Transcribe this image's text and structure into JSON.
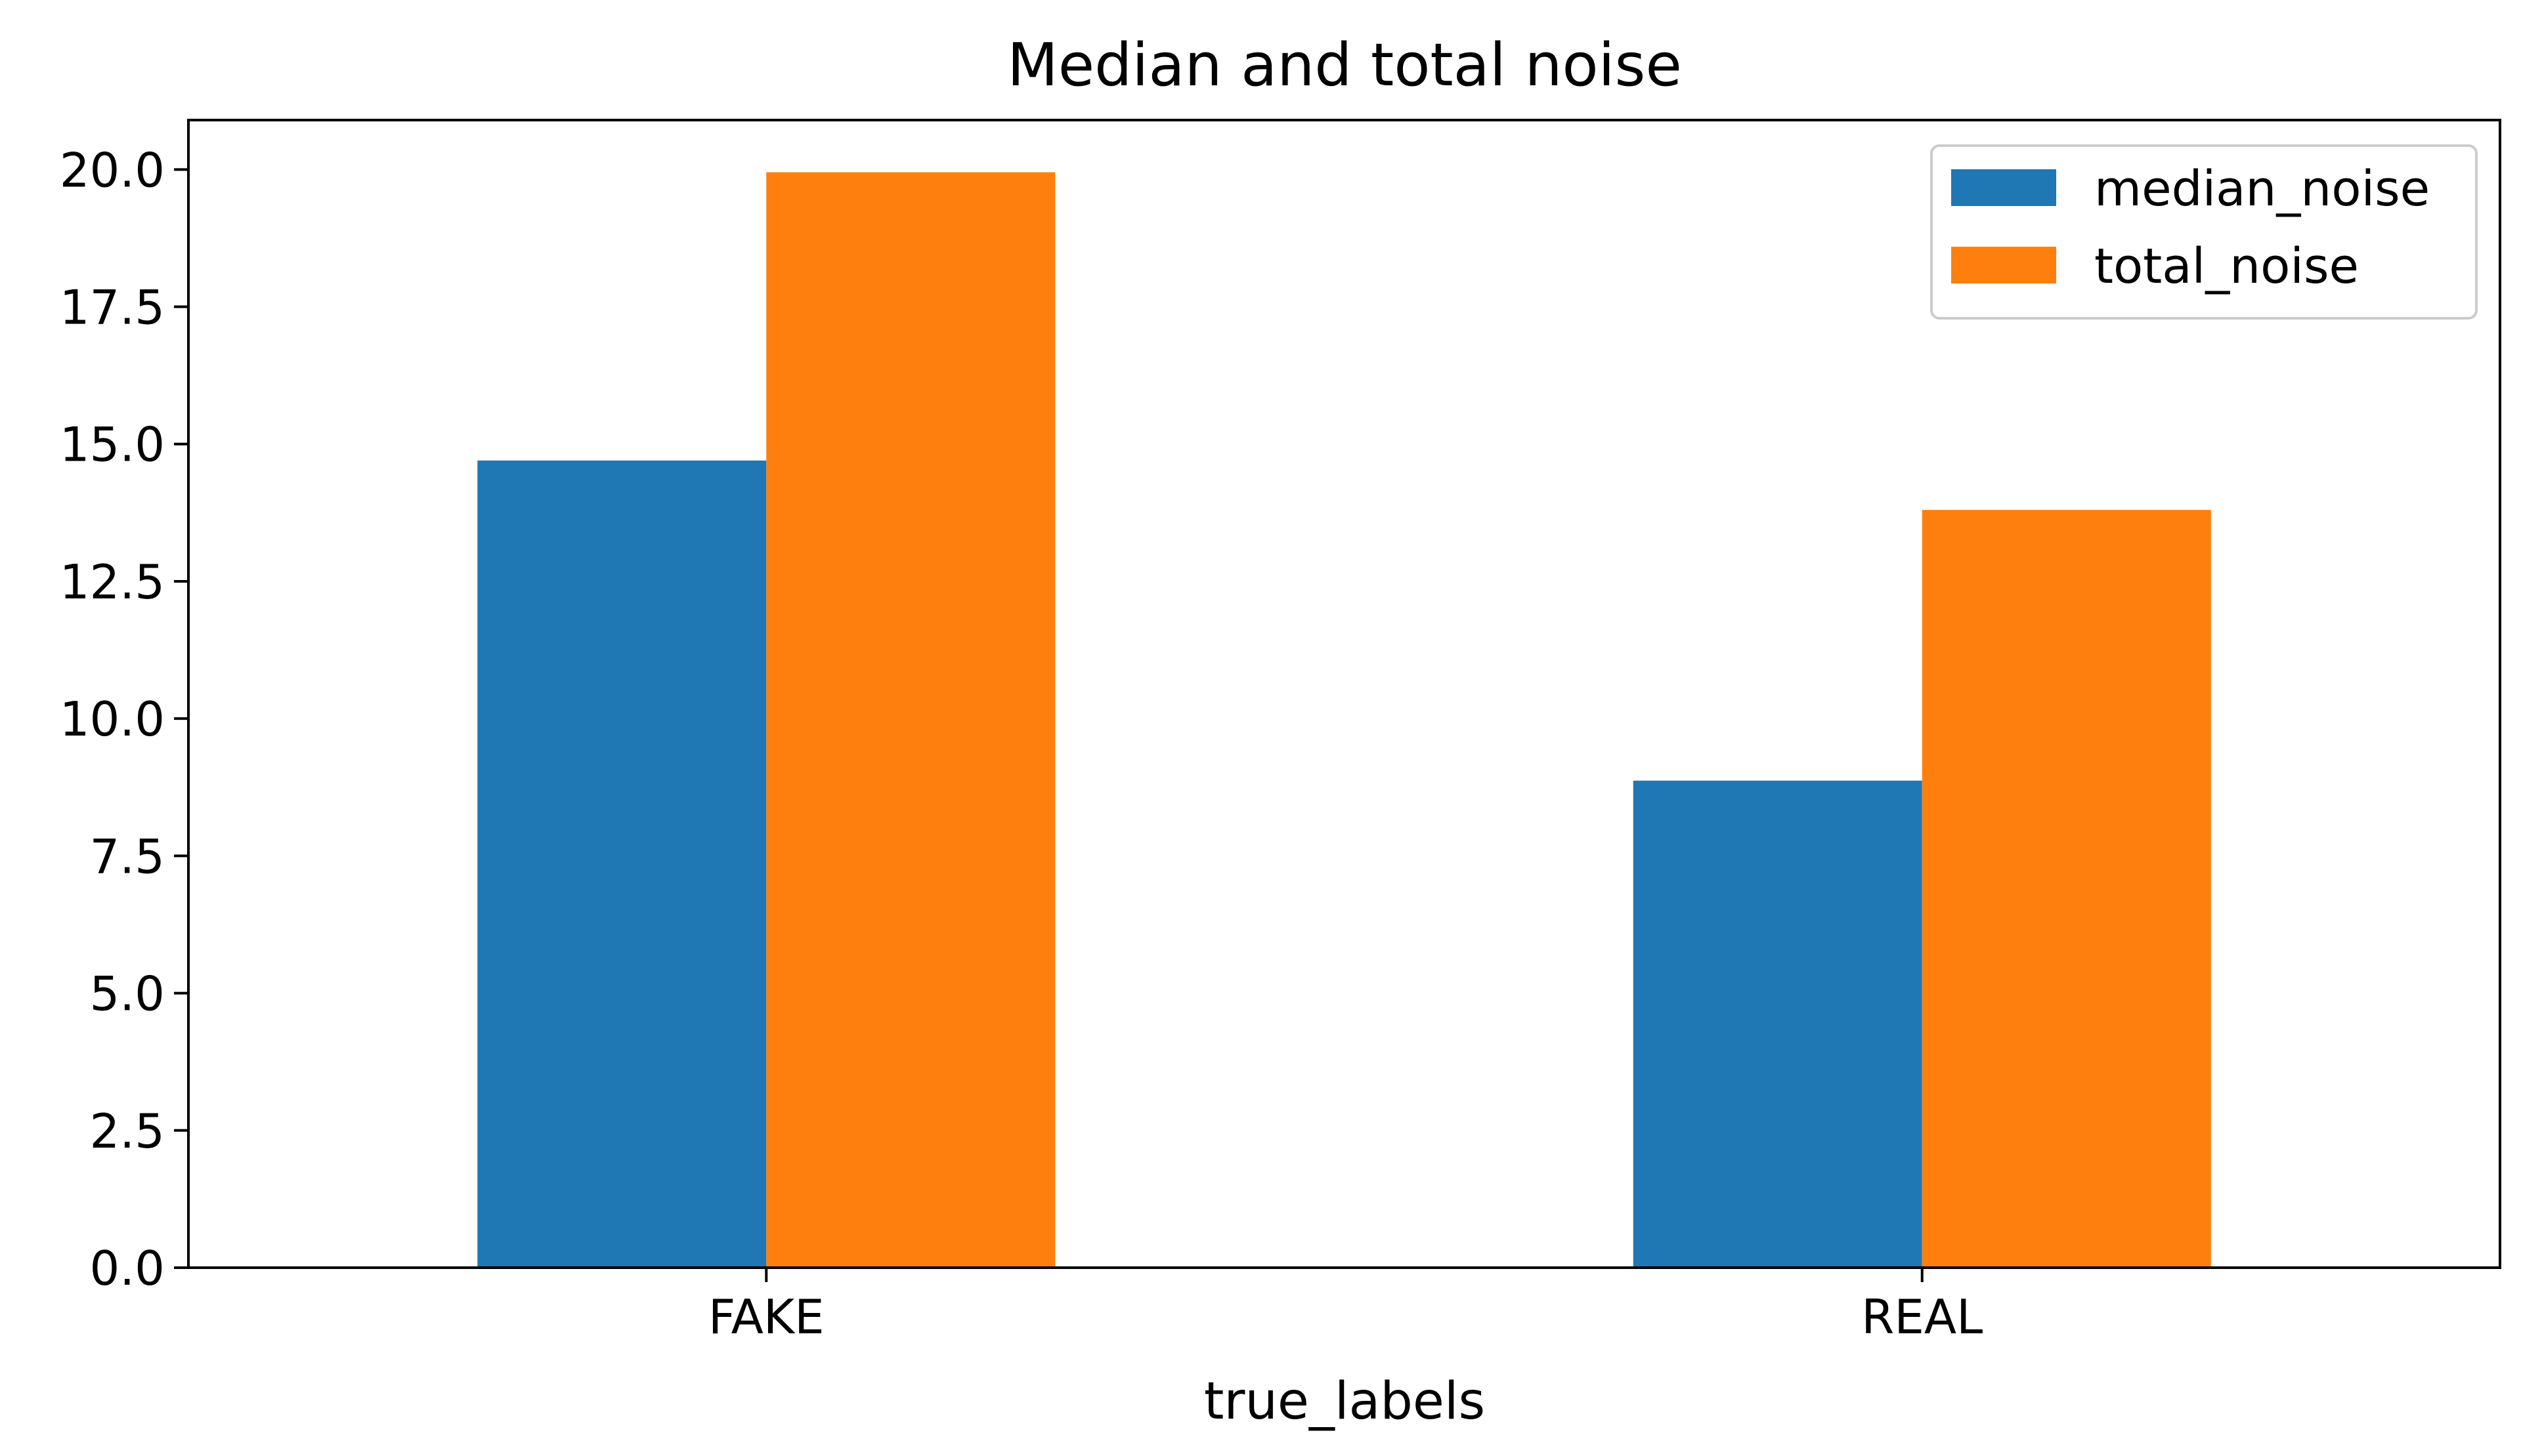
{
  "chart_data": {
    "type": "bar",
    "title": "Median and total noise",
    "xlabel": "true_labels",
    "ylabel": "",
    "categories": [
      "FAKE",
      "REAL"
    ],
    "series": [
      {
        "name": "median_noise",
        "values": [
          14.7,
          8.87
        ],
        "color": "#1f77b4"
      },
      {
        "name": "total_noise",
        "values": [
          19.95,
          13.8
        ],
        "color": "#ff7f0e"
      }
    ],
    "ylim": [
      0,
      20.9
    ],
    "yticks": [
      0.0,
      2.5,
      5.0,
      7.5,
      10.0,
      12.5,
      15.0,
      17.5,
      20.0
    ],
    "ytick_labels": [
      "0.0",
      "2.5",
      "5.0",
      "7.5",
      "10.0",
      "12.5",
      "15.0",
      "17.5",
      "20.0"
    ],
    "grid": false,
    "legend_position": "top-right"
  }
}
